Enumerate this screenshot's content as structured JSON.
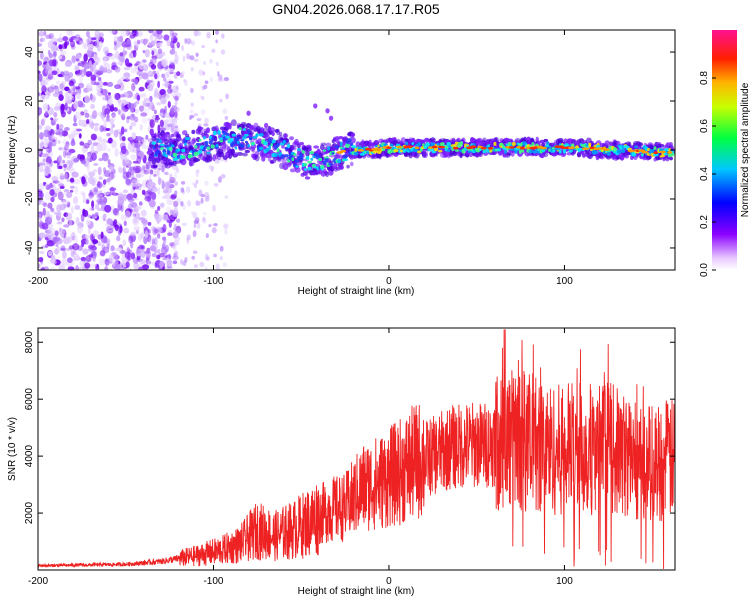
{
  "title": "GN04.2026.068.17.17.R05",
  "chart_data": [
    {
      "type": "heatmap",
      "xlabel": "Height of straight line (km)",
      "ylabel": "Frequency (Hz)",
      "xlim": [
        -200,
        163
      ],
      "ylim": [
        -49,
        49
      ],
      "x_ticks": [
        "-200",
        "-100",
        "0",
        "100"
      ],
      "y_ticks": [
        "40",
        "20",
        "0",
        "-20",
        "-40"
      ],
      "colorbar": {
        "label": "Normalized spectral amplitude",
        "range": [
          0,
          1
        ],
        "ticks": [
          "0.0",
          "0.2",
          "0.4",
          "0.6",
          "0.8"
        ]
      },
      "description_points": {
        "noise_region_x": [
          -200,
          -120
        ],
        "signal_center_freq": [
          [
            -135,
            0
          ],
          [
            -120,
            0
          ],
          [
            -100,
            3
          ],
          [
            -85,
            5
          ],
          [
            -70,
            3
          ],
          [
            -55,
            -2
          ],
          [
            -45,
            -5
          ],
          [
            -35,
            -3
          ],
          [
            -25,
            0
          ],
          [
            -10,
            0
          ],
          [
            0,
            1
          ],
          [
            20,
            1
          ],
          [
            50,
            1
          ],
          [
            80,
            1
          ],
          [
            100,
            1
          ],
          [
            130,
            0
          ],
          [
            160,
            -1
          ]
        ]
      }
    },
    {
      "type": "line",
      "xlabel": "Height of straight line (km)",
      "ylabel": "SNR (10 * v/v)",
      "xlim": [
        -200,
        163
      ],
      "ylim": [
        0,
        8500
      ],
      "x_ticks": [
        "-200",
        "-100",
        "0",
        "100"
      ],
      "y_ticks": [
        "8000",
        "6000",
        "4000",
        "2000"
      ],
      "series": [
        {
          "name": "SNR",
          "color": "#ee2222",
          "envelope": [
            [
              -200,
              150
            ],
            [
              -170,
              180
            ],
            [
              -150,
              200
            ],
            [
              -130,
              300
            ],
            [
              -110,
              500
            ],
            [
              -95,
              700
            ],
            [
              -85,
              900
            ],
            [
              -75,
              1400
            ],
            [
              -65,
              1200
            ],
            [
              -55,
              1400
            ],
            [
              -45,
              1700
            ],
            [
              -35,
              2100
            ],
            [
              -25,
              2200
            ],
            [
              -15,
              2900
            ],
            [
              -5,
              3100
            ],
            [
              5,
              3400
            ],
            [
              15,
              3800
            ],
            [
              25,
              4000
            ],
            [
              35,
              4300
            ],
            [
              45,
              4400
            ],
            [
              55,
              4400
            ],
            [
              65,
              4600
            ],
            [
              75,
              4600
            ],
            [
              85,
              4400
            ],
            [
              95,
              4200
            ],
            [
              105,
              4300
            ],
            [
              115,
              4200
            ],
            [
              125,
              4300
            ],
            [
              135,
              4000
            ],
            [
              145,
              3800
            ],
            [
              155,
              3800
            ],
            [
              163,
              3900
            ]
          ]
        }
      ]
    }
  ]
}
